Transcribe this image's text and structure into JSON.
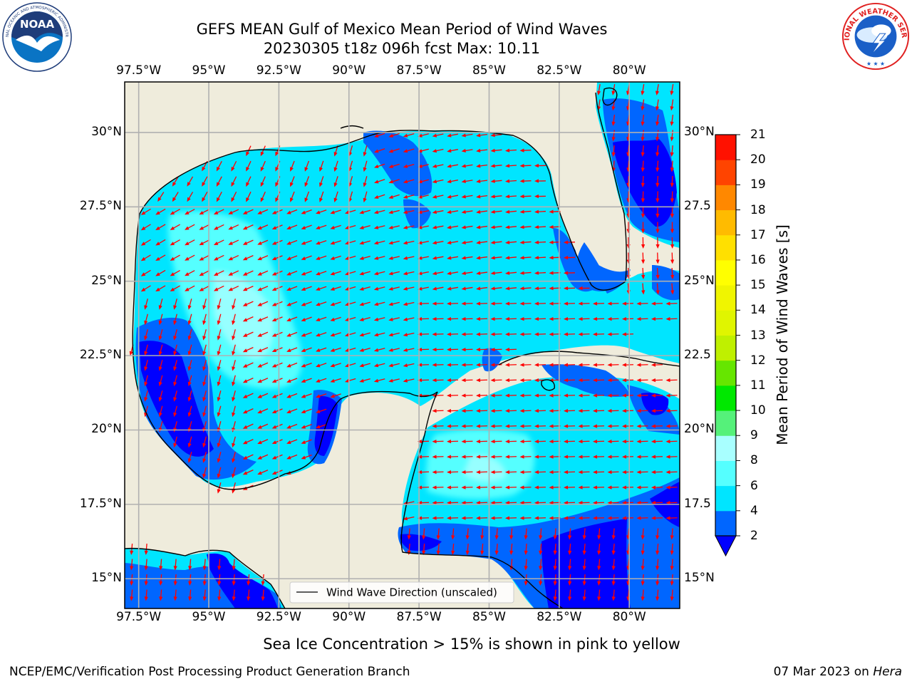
{
  "title": {
    "line1": "GEFS MEAN Gulf of Mexico Mean Period of Wind Waves",
    "line2": "20230305 t18z 096h fcst   Max: 10.11"
  },
  "map": {
    "lon_range": [
      -98.0,
      -78.2
    ],
    "lat_range": [
      14.0,
      31.7
    ],
    "x_ticks": [
      "97.5°W",
      "95°W",
      "92.5°W",
      "90°W",
      "87.5°W",
      "85°W",
      "82.5°W",
      "80°W"
    ],
    "x_tick_values": [
      -97.5,
      -95.0,
      -92.5,
      -90.0,
      -87.5,
      -85.0,
      -82.5,
      -80.0
    ],
    "y_ticks_left": [
      "30°N",
      "27.5°N",
      "25°N",
      "22.5°N",
      "20°N",
      "17.5°N",
      "15°N"
    ],
    "y_ticks_right": [
      "30°N",
      "27.5",
      "25°N",
      "22.5",
      "20°N",
      "17.5",
      "15°N"
    ],
    "y_tick_values": [
      30.0,
      27.5,
      25.0,
      22.5,
      20.0,
      17.5,
      15.0
    ],
    "land_color": "#efecdc",
    "grid_color": "#b0b0b0",
    "arrow_color": "#ff0000"
  },
  "legend": {
    "label": "Wind Wave Direction (unscaled)"
  },
  "colorbar": {
    "label": "Mean Period of Wind Waves [s]",
    "ticks": [
      "2",
      "4",
      "6",
      "8",
      "9",
      "10",
      "11",
      "12",
      "13",
      "14",
      "15",
      "16",
      "17",
      "18",
      "19",
      "20",
      "21"
    ],
    "colors": [
      "#0066ff",
      "#00e5ff",
      "#55ffff",
      "#a8ffff",
      "#55f17a",
      "#00e800",
      "#66e600",
      "#bff000",
      "#e0f500",
      "#f0f500",
      "#ffff00",
      "#ffe000",
      "#ffbb00",
      "#ff8800",
      "#ff4400",
      "#ff1100"
    ],
    "extend_low_color": "#0000ff"
  },
  "period_colors": {
    "very_low": "#0000ff",
    "low": "#0066ff",
    "mid": "#00e5ff",
    "high": "#55ffff",
    "peak": "#a8ffff"
  },
  "footer": {
    "caption": "Sea Ice Concentration > 15% is shown in pink to yellow",
    "credit": "NCEP/EMC/Verification Post Processing Product Generation Branch",
    "date": "07 Mar 2023 on",
    "machine": "Hera"
  },
  "logos": {
    "left": {
      "icon": "noaa-logo",
      "text": "NOAA"
    },
    "right": {
      "icon": "nws-logo",
      "text": "NATIONAL WEATHER SERVICE"
    }
  }
}
